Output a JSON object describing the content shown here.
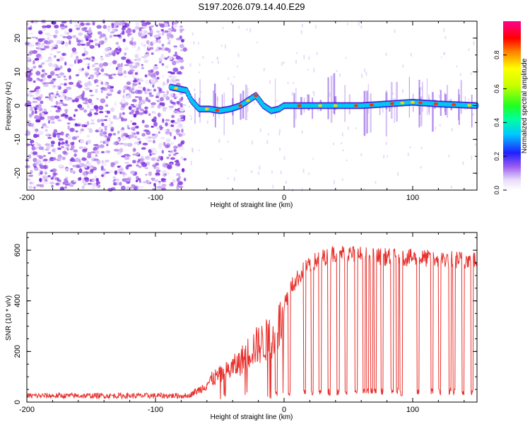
{
  "chart_data": [
    {
      "type": "heatmap",
      "title": "S197.2026.079.14.40.E29",
      "xlabel": "Height of straight line (km)",
      "ylabel": "Frequency (Hz)",
      "xlim": [
        -200,
        150
      ],
      "ylim": [
        -25,
        25
      ],
      "xticks": [
        -200,
        -100,
        0,
        100
      ],
      "yticks": [
        -20,
        -10,
        0,
        10,
        20
      ],
      "xtick_labels": [
        "-200",
        "-100",
        "0",
        "100"
      ],
      "ytick_labels": [
        "-20",
        "-10",
        "0",
        "10",
        "20"
      ],
      "colorbar": {
        "label": "Normalized spectral amplitude",
        "range": [
          0,
          1
        ],
        "ticks": [
          0,
          0.2,
          0.4,
          0.6,
          0.8
        ],
        "tick_labels": [
          "0.0",
          "0.2",
          "0.4",
          "0.6",
          "0.8"
        ]
      },
      "noise_region_end_km": -77,
      "tone_track": [
        {
          "x": -88,
          "y": 5.5
        },
        {
          "x": -82,
          "y": 5.0
        },
        {
          "x": -76,
          "y": 4.5
        },
        {
          "x": -72,
          "y": 1.5
        },
        {
          "x": -66,
          "y": -1.0
        },
        {
          "x": -58,
          "y": -1.0
        },
        {
          "x": -50,
          "y": -1.5
        },
        {
          "x": -42,
          "y": -1.0
        },
        {
          "x": -34,
          "y": 0.0
        },
        {
          "x": -28,
          "y": 1.5
        },
        {
          "x": -22,
          "y": 3.0
        },
        {
          "x": -16,
          "y": 0.0
        },
        {
          "x": -10,
          "y": -1.5
        },
        {
          "x": -4,
          "y": -1.0
        },
        {
          "x": 0,
          "y": 0.0
        },
        {
          "x": 20,
          "y": 0.0
        },
        {
          "x": 40,
          "y": 0.0
        },
        {
          "x": 60,
          "y": 0.0
        },
        {
          "x": 80,
          "y": 0.5
        },
        {
          "x": 100,
          "y": 1.0
        },
        {
          "x": 120,
          "y": 0.5
        },
        {
          "x": 150,
          "y": 0.0
        }
      ]
    },
    {
      "type": "line",
      "xlabel": "Height of straight line (km)",
      "ylabel": "SNR (10 * v/v)",
      "xlim": [
        -200,
        150
      ],
      "ylim": [
        0,
        670
      ],
      "xticks": [
        -200,
        -100,
        0,
        100
      ],
      "yticks": [
        0,
        200,
        400,
        600
      ],
      "xtick_labels": [
        "-200",
        "-100",
        "0",
        "100"
      ],
      "ytick_labels": [
        "0",
        "200",
        "400",
        "600"
      ],
      "color": "#e8302c",
      "envelope": [
        {
          "x": -200,
          "y": 18
        },
        {
          "x": -80,
          "y": 20
        },
        {
          "x": -75,
          "y": 28
        },
        {
          "x": -65,
          "y": 60
        },
        {
          "x": -55,
          "y": 110
        },
        {
          "x": -45,
          "y": 140
        },
        {
          "x": -35,
          "y": 180
        },
        {
          "x": -25,
          "y": 250
        },
        {
          "x": -15,
          "y": 280
        },
        {
          "x": -8,
          "y": 320
        },
        {
          "x": 0,
          "y": 390
        },
        {
          "x": 5,
          "y": 450
        },
        {
          "x": 15,
          "y": 520
        },
        {
          "x": 25,
          "y": 560
        },
        {
          "x": 40,
          "y": 590
        },
        {
          "x": 70,
          "y": 575
        },
        {
          "x": 100,
          "y": 570
        },
        {
          "x": 150,
          "y": 560
        }
      ],
      "dropout_centers_km": [
        -6,
        4,
        16,
        22,
        28,
        35,
        42,
        48,
        56,
        62,
        65,
        68,
        71,
        76,
        84,
        88,
        91,
        104,
        115,
        121,
        129,
        132,
        139,
        146
      ]
    }
  ]
}
